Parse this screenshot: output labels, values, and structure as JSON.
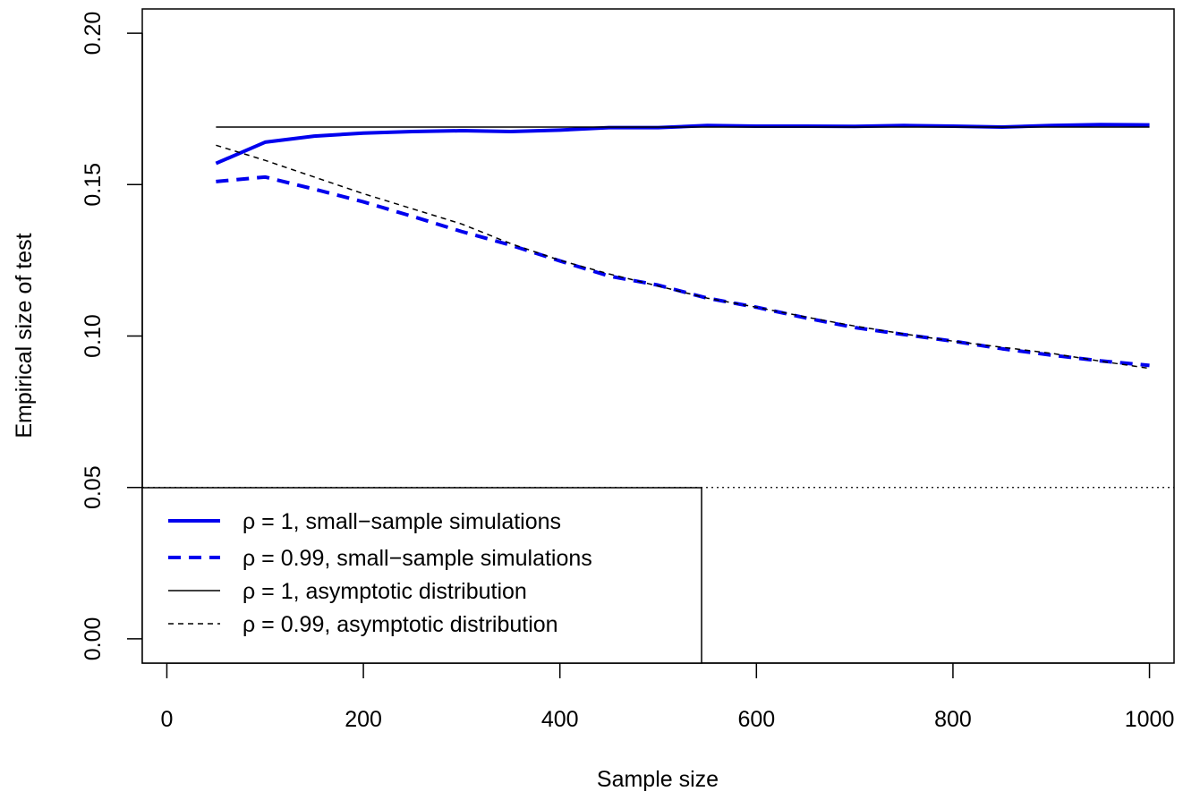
{
  "chart_data": {
    "type": "line",
    "title": "",
    "xlabel": "Sample size",
    "ylabel": "Empirical size of test",
    "xlim": [
      -25,
      1025
    ],
    "ylim": [
      -0.008,
      0.208
    ],
    "x_ticks": [
      0,
      200,
      400,
      600,
      800,
      1000
    ],
    "x_tick_labels": [
      "0",
      "200",
      "400",
      "600",
      "800",
      "1000"
    ],
    "y_ticks": [
      0.0,
      0.05,
      0.1,
      0.15,
      0.2
    ],
    "y_tick_labels": [
      "0.00",
      "0.05",
      "0.10",
      "0.15",
      "0.20"
    ],
    "grid": false,
    "legend_position": "bottom-left",
    "reference_line": {
      "y": 0.05,
      "style": "dotted",
      "color": "#000000"
    },
    "x": [
      50,
      100,
      150,
      200,
      250,
      300,
      350,
      400,
      450,
      500,
      550,
      600,
      650,
      700,
      750,
      800,
      850,
      900,
      950,
      1000
    ],
    "series": [
      {
        "name": "ρ = 1, small−sample simulations",
        "style": "solid",
        "color": "#0000ee",
        "width": "thick",
        "values": [
          0.157,
          0.164,
          0.166,
          0.167,
          0.1675,
          0.1678,
          0.1675,
          0.168,
          0.1688,
          0.1688,
          0.1695,
          0.1693,
          0.1693,
          0.1692,
          0.1695,
          0.1693,
          0.169,
          0.1695,
          0.1698,
          0.1697
        ]
      },
      {
        "name": "ρ = 0.99, small−sample simulations",
        "style": "dashed",
        "color": "#0000ee",
        "width": "thick",
        "values": [
          0.151,
          0.1525,
          0.1485,
          0.1443,
          0.1395,
          0.1345,
          0.13,
          0.1248,
          0.1198,
          0.1168,
          0.1125,
          0.1095,
          0.106,
          0.1028,
          0.1005,
          0.0983,
          0.0958,
          0.0937,
          0.0918,
          0.0903
        ]
      },
      {
        "name": "ρ = 1, asymptotic distribution",
        "style": "solid",
        "color": "#000000",
        "width": "thin",
        "values": [
          0.169,
          0.169,
          0.169,
          0.169,
          0.169,
          0.169,
          0.169,
          0.169,
          0.169,
          0.169,
          0.169,
          0.169,
          0.169,
          0.169,
          0.169,
          0.169,
          0.169,
          0.169,
          0.169,
          0.169
        ]
      },
      {
        "name": "ρ = 0.99, asymptotic distribution",
        "style": "dashed",
        "color": "#000000",
        "width": "thin",
        "values": [
          0.163,
          0.158,
          0.1525,
          0.147,
          0.142,
          0.137,
          0.1305,
          0.125,
          0.1205,
          0.1165,
          0.1125,
          0.1095,
          0.1063,
          0.1033,
          0.1007,
          0.0983,
          0.0963,
          0.0943,
          0.0917,
          0.0893
        ]
      }
    ]
  }
}
